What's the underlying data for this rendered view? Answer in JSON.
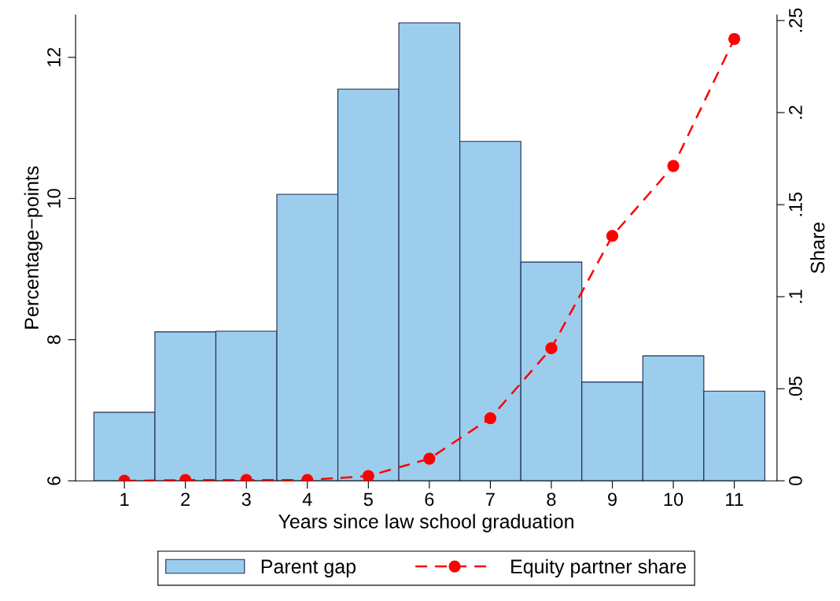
{
  "chart_data": {
    "type": "bar",
    "xlabel": "Years since law school graduation",
    "ylabel": "Percentage−points",
    "y2label": "Share",
    "categories": [
      "1",
      "2",
      "3",
      "4",
      "5",
      "6",
      "7",
      "8",
      "9",
      "10",
      "11"
    ],
    "series": [
      {
        "name": "Parent gap",
        "color": "#9dcdec",
        "values": [
          6.97,
          8.11,
          8.12,
          10.06,
          11.55,
          12.49,
          10.81,
          9.1,
          7.4,
          7.77,
          7.27
        ]
      },
      {
        "name": "Equity partner share",
        "type": "line",
        "axis": "y2",
        "color": "#ff0000",
        "marker": "circle",
        "line_style": "dashed",
        "values": [
          0,
          0.0004,
          0.0004,
          0.0004,
          0.0026,
          0.012,
          0.034,
          0.072,
          0.133,
          0.171,
          0.24
        ]
      }
    ],
    "ylim": [
      6,
      12.6
    ],
    "yticks": [
      6,
      8,
      10,
      12
    ],
    "y2lim": [
      0,
      0.253
    ],
    "y2ticks": [
      {
        "value": 0,
        "label": "0"
      },
      {
        "value": 0.05,
        "label": ".05"
      },
      {
        "value": 0.1,
        "label": ".1"
      },
      {
        "value": 0.15,
        "label": ".15"
      },
      {
        "value": 0.2,
        "label": ".2"
      },
      {
        "value": 0.25,
        "label": ".25"
      }
    ],
    "grid": false,
    "legend": "bottom"
  }
}
